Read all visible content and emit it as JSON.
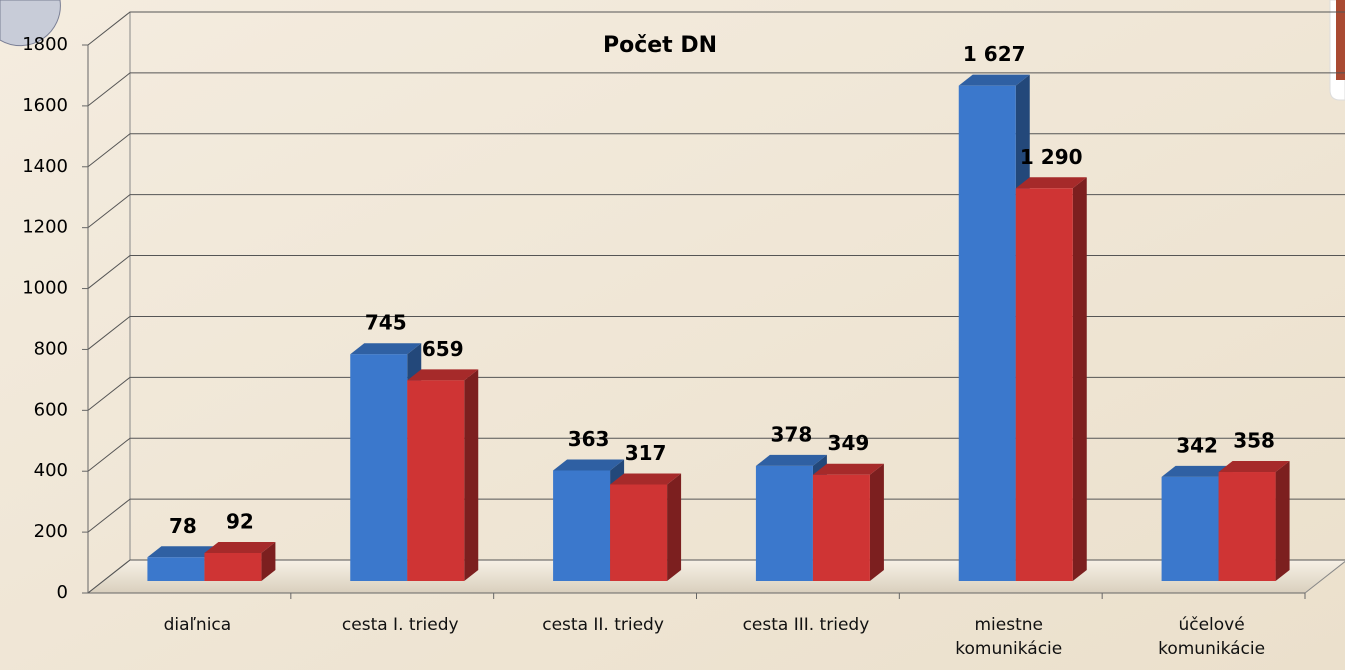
{
  "chart_data": {
    "type": "bar3d",
    "title": "Počet DN",
    "categories": [
      "diaľnica",
      "cesta I. triedy",
      "cesta II. triedy",
      "cesta III. triedy",
      "miestne komunikácie",
      "účelové komunikácie"
    ],
    "series": [
      {
        "color": "#3b78cc",
        "values": [
          78,
          745,
          363,
          378,
          1627,
          342
        ],
        "value_labels": [
          "78",
          "745",
          "363",
          "378",
          "1 627",
          "342"
        ]
      },
      {
        "color": "#cf3434",
        "values": [
          92,
          659,
          317,
          349,
          1290,
          358
        ],
        "value_labels": [
          "92",
          "659",
          "317",
          "349",
          "1 290",
          "358"
        ]
      }
    ],
    "ylim": [
      0,
      1800
    ],
    "yticks": [
      0,
      200,
      400,
      600,
      800,
      1000,
      1200,
      1400,
      1600,
      1800
    ],
    "grid": true
  }
}
